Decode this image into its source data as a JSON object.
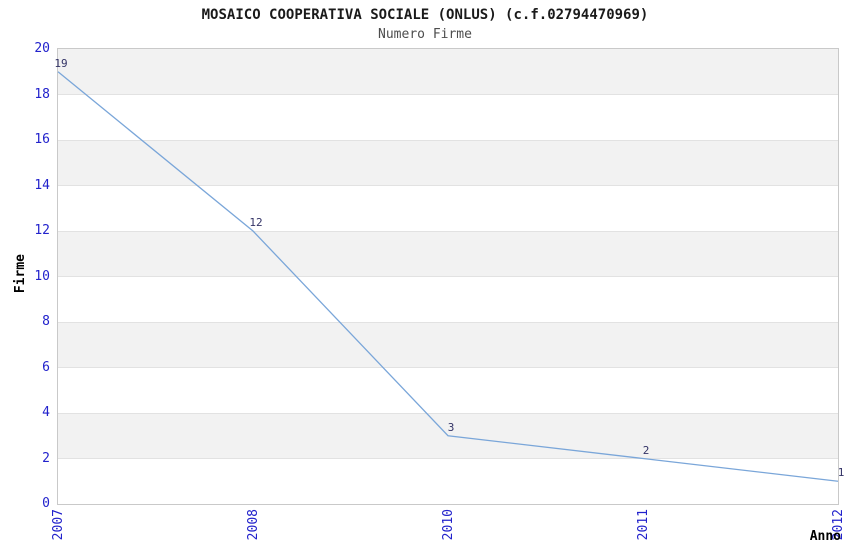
{
  "chart_data": {
    "type": "line",
    "title": "MOSAICO COOPERATIVA SOCIALE (ONLUS) (c.f.02794470969)",
    "subtitle": "Numero Firme",
    "xlabel": "Anno",
    "ylabel": "Firme",
    "x": [
      "2007",
      "2008",
      "2010",
      "2011",
      "2012"
    ],
    "values": [
      19,
      12,
      3,
      2,
      1
    ],
    "point_labels": [
      "19",
      "12",
      "3",
      "2",
      "1"
    ],
    "ylim": [
      0,
      20
    ],
    "y_ticks": [
      0,
      2,
      4,
      6,
      8,
      10,
      12,
      14,
      16,
      18,
      20
    ],
    "legend": "none",
    "grid": "alternating horizontal gray bands every 2 units with light gridlines",
    "colors": {
      "line": "#7aa6d9",
      "tick_label": "#2222cc",
      "point_label": "#333366",
      "band_fill": "#f2f2f2",
      "gridline": "#e2e2e2",
      "plot_border": "#c9c9c9",
      "title": "#1a1a1a",
      "subtitle": "#4d4d4d",
      "axis_label": "#000000",
      "background": "#ffffff"
    }
  }
}
